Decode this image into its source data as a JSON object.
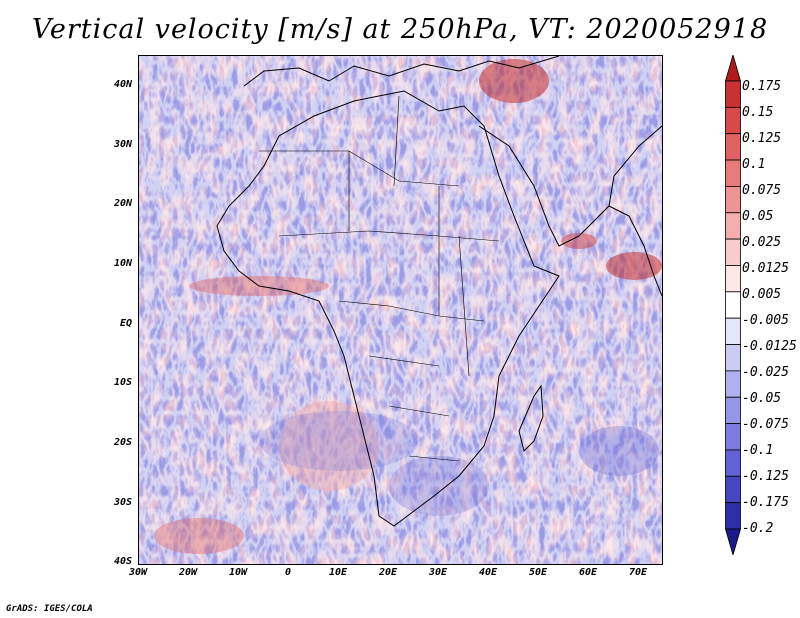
{
  "title": "Vertical velocity [m/s] at 250hPa, VT: 2020052918",
  "lat_labels": [
    "40N",
    "30N",
    "20N",
    "10N",
    "EQ",
    "10S",
    "20S",
    "30S",
    "40S"
  ],
  "lon_labels": [
    "30W",
    "20W",
    "10W",
    "0",
    "10E",
    "20E",
    "30E",
    "40E",
    "50E",
    "60E",
    "70E"
  ],
  "colorbar": {
    "labels": [
      "0.175",
      "0.15",
      "0.125",
      "0.1",
      "0.075",
      "0.05",
      "0.025",
      "0.0125",
      "0.005",
      "-0.005",
      "-0.0125",
      "-0.025",
      "-0.05",
      "-0.075",
      "-0.1",
      "-0.125",
      "-0.175",
      "-0.2"
    ],
    "colors": [
      "#b01c1c",
      "#c93232",
      "#d84a4a",
      "#e06262",
      "#e87a7a",
      "#ef9494",
      "#f4aeae",
      "#f9cccc",
      "#fde8e8",
      "#ffffff",
      "#e6e6fb",
      "#cbcbf4",
      "#b0b0ee",
      "#9696e7",
      "#7c7ce0",
      "#6262d6",
      "#4646c4",
      "#2e2eaa",
      "#1a1a8a"
    ]
  },
  "credit": "GrADS: IGES/COLA"
}
